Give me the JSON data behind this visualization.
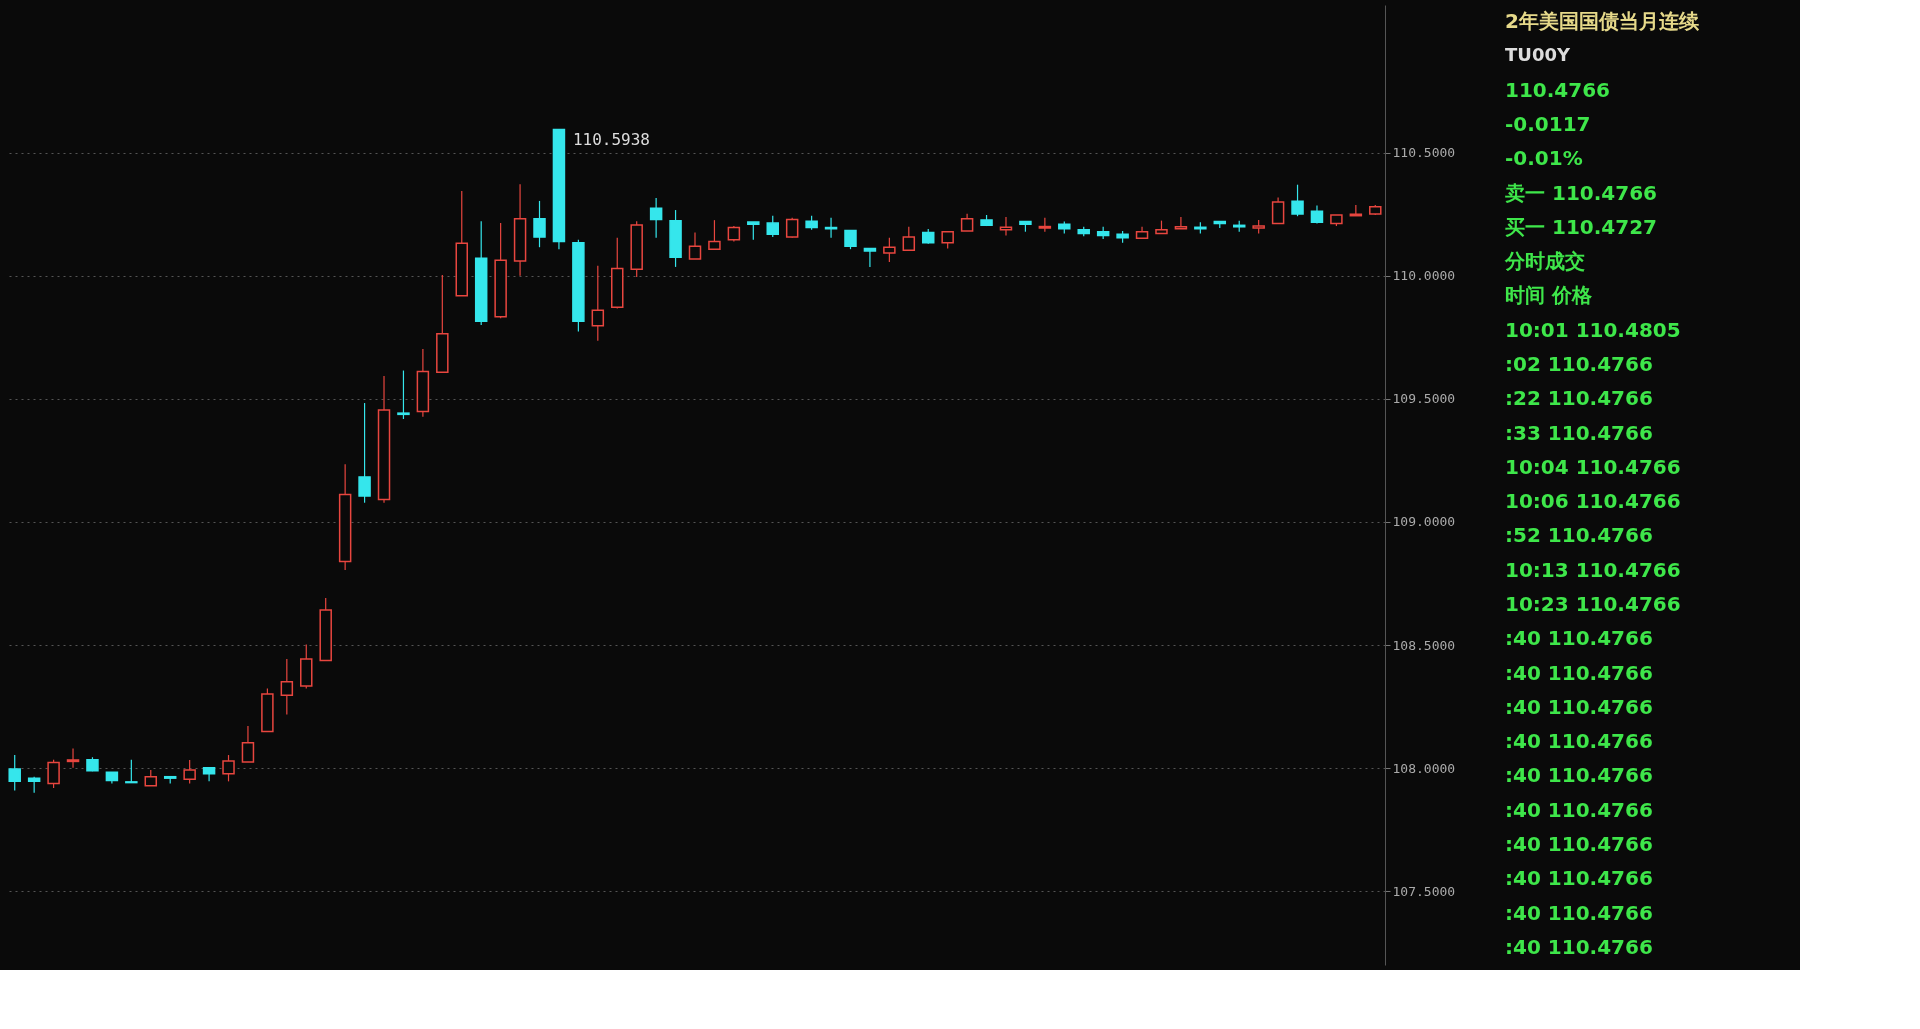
{
  "chart_data": [
    {
      "type": "candlestick",
      "categories": [
        null,
        null,
        null,
        null,
        null,
        null,
        null,
        null,
        null,
        null,
        null,
        null,
        null,
        null,
        null,
        null,
        null,
        null,
        null,
        null,
        null,
        null,
        null,
        null,
        null,
        null,
        null,
        null,
        null,
        null,
        null,
        null,
        null,
        null,
        null,
        null,
        null,
        null,
        null,
        null,
        null,
        null,
        null,
        null,
        null,
        null,
        null,
        null,
        null,
        null,
        null,
        null,
        null,
        null,
        null,
        null,
        null,
        null,
        null,
        null,
        null,
        null,
        null,
        null,
        null,
        null,
        null,
        null,
        null,
        null,
        null
      ],
      "ohlc": [
        [
          107.996,
          108.053,
          107.909,
          107.946
        ],
        [
          107.959,
          107.965,
          107.9,
          107.946
        ],
        [
          107.937,
          108.034,
          107.919,
          108.023
        ],
        [
          108.027,
          108.08,
          108.001,
          108.033
        ],
        [
          108.034,
          108.044,
          107.987,
          107.989
        ],
        [
          107.983,
          107.983,
          107.937,
          107.95
        ],
        [
          107.944,
          108.034,
          107.941,
          107.941
        ],
        [
          107.928,
          107.992,
          107.928,
          107.965
        ],
        [
          107.965,
          107.965,
          107.937,
          107.959
        ],
        [
          107.955,
          108.033,
          107.937,
          107.992
        ],
        [
          108.001,
          108.001,
          107.946,
          107.977
        ],
        [
          107.977,
          108.053,
          107.946,
          108.029
        ],
        [
          108.025,
          108.171,
          108.025,
          108.103
        ],
        [
          108.149,
          108.323,
          108.149,
          108.301
        ],
        [
          108.296,
          108.443,
          108.218,
          108.351
        ],
        [
          108.333,
          108.502,
          108.323,
          108.443
        ],
        [
          108.437,
          108.691,
          108.437,
          108.642
        ],
        [
          108.839,
          109.234,
          108.805,
          109.111
        ],
        [
          109.183,
          109.483,
          109.078,
          109.105
        ],
        [
          109.091,
          109.593,
          109.078,
          109.455
        ],
        [
          109.442,
          109.615,
          109.418,
          109.437
        ],
        [
          109.449,
          109.703,
          109.427,
          109.611
        ],
        [
          109.608,
          110.003,
          109.608,
          109.764
        ],
        [
          109.919,
          110.344,
          109.919,
          110.132
        ],
        [
          110.071,
          110.221,
          109.8,
          109.815
        ],
        [
          109.834,
          110.214,
          109.827,
          110.063
        ],
        [
          110.06,
          110.372,
          110.0,
          110.232
        ],
        [
          110.232,
          110.304,
          110.116,
          110.157
        ],
        [
          110.5938,
          110.5938,
          110.108,
          110.139
        ],
        [
          110.134,
          110.146,
          109.774,
          109.815
        ],
        [
          109.797,
          110.041,
          109.736,
          109.86
        ],
        [
          109.872,
          110.154,
          109.867,
          110.03
        ],
        [
          110.026,
          110.221,
          109.995,
          110.206
        ],
        [
          110.274,
          110.316,
          110.154,
          110.229
        ],
        [
          110.224,
          110.267,
          110.036,
          110.075
        ],
        [
          110.068,
          110.176,
          110.068,
          110.12
        ],
        [
          110.108,
          110.226,
          110.108,
          110.139
        ],
        [
          110.146,
          110.202,
          110.139,
          110.196
        ],
        [
          110.218,
          110.218,
          110.146,
          110.209
        ],
        [
          110.214,
          110.244,
          110.157,
          110.169
        ],
        [
          110.157,
          110.236,
          110.154,
          110.229
        ],
        [
          110.221,
          110.244,
          110.187,
          110.196
        ],
        [
          110.196,
          110.236,
          110.154,
          110.191
        ],
        [
          110.184,
          110.184,
          110.108,
          110.12
        ],
        [
          110.111,
          110.111,
          110.036,
          110.101
        ],
        [
          110.093,
          110.154,
          110.056,
          110.116
        ],
        [
          110.104,
          110.199,
          110.104,
          110.157
        ],
        [
          110.176,
          110.19,
          110.13,
          110.134
        ],
        [
          110.134,
          110.179,
          110.111,
          110.179
        ],
        [
          110.182,
          110.252,
          110.182,
          110.232
        ],
        [
          110.227,
          110.247,
          110.202,
          110.205
        ],
        [
          110.187,
          110.239,
          110.164,
          110.197
        ],
        [
          110.22,
          110.22,
          110.179,
          110.209
        ],
        [
          110.194,
          110.236,
          110.179,
          110.2
        ],
        [
          110.209,
          110.22,
          110.172,
          110.191
        ],
        [
          110.187,
          110.199,
          110.161,
          110.172
        ],
        [
          110.179,
          110.199,
          110.149,
          110.164
        ],
        [
          110.169,
          110.182,
          110.134,
          110.154
        ],
        [
          110.152,
          110.199,
          110.152,
          110.179
        ],
        [
          110.172,
          110.224,
          110.172,
          110.187
        ],
        [
          110.191,
          110.239,
          110.191,
          110.199
        ],
        [
          110.197,
          110.217,
          110.172,
          110.191
        ],
        [
          110.22,
          110.22,
          110.194,
          110.212
        ],
        [
          110.205,
          110.224,
          110.179,
          110.199
        ],
        [
          110.194,
          110.227,
          110.172,
          110.202
        ],
        [
          110.212,
          110.318,
          110.212,
          110.3
        ],
        [
          110.303,
          110.37,
          110.242,
          110.251
        ],
        [
          110.262,
          110.285,
          110.212,
          110.217
        ],
        [
          110.212,
          110.247,
          110.202,
          110.247
        ],
        [
          110.244,
          110.288,
          110.244,
          110.25
        ],
        [
          110.251,
          110.288,
          110.247,
          110.28
        ]
      ],
      "colors": [
        "#35e6ec",
        "#35e6ec",
        "#e8463f",
        "#e8463f",
        "#35e6ec",
        "#35e6ec",
        "#35e6ec",
        "#e8463f",
        "#35e6ec",
        "#e8463f",
        "#35e6ec",
        "#e8463f",
        "#e8463f",
        "#e8463f",
        "#e8463f",
        "#e8463f",
        "#e8463f",
        "#e8463f",
        "#35e6ec",
        "#e8463f",
        "#35e6ec",
        "#e8463f",
        "#e8463f",
        "#e8463f",
        "#35e6ec",
        "#e8463f",
        "#e8463f",
        "#35e6ec",
        "#35e6ec",
        "#35e6ec",
        "#e8463f",
        "#e8463f",
        "#e8463f",
        "#35e6ec",
        "#35e6ec",
        "#e8463f",
        "#e8463f",
        "#e8463f",
        "#35e6ec",
        "#35e6ec",
        "#e8463f",
        "#35e6ec",
        "#35e6ec",
        "#35e6ec",
        "#35e6ec",
        "#e8463f",
        "#e8463f",
        "#35e6ec",
        "#e8463f",
        "#e8463f",
        "#35e6ec",
        "#e8463f",
        "#35e6ec",
        "#e8463f",
        "#35e6ec",
        "#35e6ec",
        "#35e6ec",
        "#35e6ec",
        "#e8463f",
        "#e8463f",
        "#e8463f",
        "#35e6ec",
        "#35e6ec",
        "#35e6ec",
        "#e8463f",
        "#e8463f",
        "#35e6ec",
        "#35e6ec",
        "#e8463f",
        "#e8463f",
        "#e8463f"
      ],
      "ylim": [
        107.2,
        111.1
      ],
      "yticks": [
        {
          "value": 107.5,
          "label": "107.5000"
        },
        {
          "value": 108,
          "label": "108.0000"
        },
        {
          "value": 108.5,
          "label": "108.5000"
        },
        {
          "value": 109,
          "label": "109.0000"
        },
        {
          "value": 109.5,
          "label": "109.5000"
        },
        {
          "value": 110,
          "label": "110.0000"
        },
        {
          "value": 110.5,
          "label": "110.5000"
        }
      ],
      "grid": "y",
      "tick_labels": "y",
      "annotations": [
        "110.5938"
      ]
    },
    {
      "type": "other",
      "title": "2年美国国债当月连续",
      "subtitle": "TU00Y",
      "annotations": [
        "110.4766",
        "-0.0117",
        "-0.01%",
        "卖一 110.4766",
        "买一 110.4727",
        "分时成交",
        "时间 价格",
        "10:01 110.4805",
        "     :02 110.4766",
        "     :22 110.4766",
        "     :33 110.4766",
        "10:04 110.4766",
        "10:06 110.4766",
        "     :52 110.4766",
        "10:13 110.4766",
        "10:23 110.4766",
        "     :40 110.4766",
        "     :40 110.4766",
        "     :40 110.4766",
        "     :40 110.4766",
        "     :40 110.4766",
        "     :40 110.4766",
        "     :40 110.4766",
        "     :40 110.4766",
        "     :40 110.4766",
        "     :40 110.4766"
      ]
    }
  ]
}
